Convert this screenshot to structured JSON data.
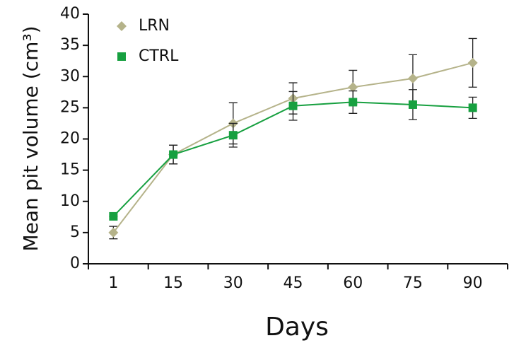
{
  "chart_data": {
    "type": "line",
    "x_label": "Days",
    "y_label": "Mean pit volume (cm³)",
    "categories": [
      "1",
      "15",
      "30",
      "45",
      "60",
      "75",
      "90"
    ],
    "series": [
      {
        "name": "LRN",
        "color": "#b5b38a",
        "marker": "diamond",
        "values": [
          5,
          17.5,
          22.5,
          26.5,
          28.3,
          29.7,
          32.2
        ],
        "errors": [
          1,
          1.5,
          3.3,
          2.5,
          2.7,
          3.8,
          3.9
        ]
      },
      {
        "name": "CTRL",
        "color": "#17a040",
        "marker": "square",
        "values": [
          7.6,
          17.5,
          20.6,
          25.3,
          25.9,
          25.5,
          25
        ],
        "errors": [
          0,
          1.5,
          1.9,
          2.3,
          1.8,
          2.4,
          1.7
        ]
      }
    ],
    "ylim": [
      0,
      40
    ],
    "yticks": [
      0,
      5,
      10,
      15,
      20,
      25,
      30,
      35,
      40
    ],
    "legend": "upper left"
  }
}
